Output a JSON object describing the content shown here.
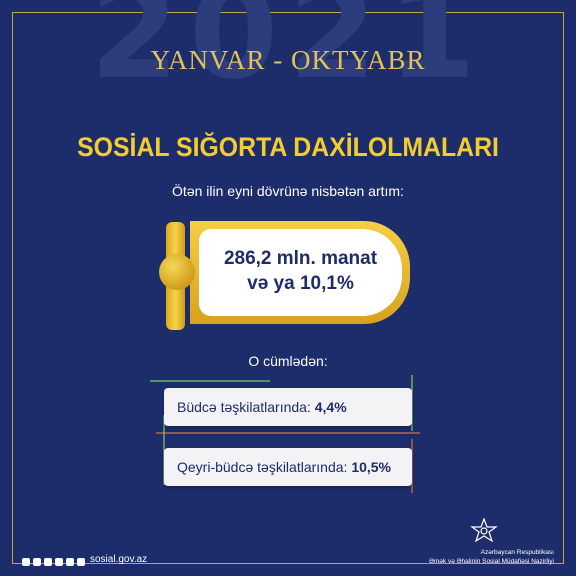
{
  "year": "2021",
  "period": "YANVAR - OKTYABR",
  "title": "SOSİAL SIĞORTA DAXİLOLMALARI",
  "subtitle": "Ötən ilin eyni dövrünə nisbətən artım:",
  "main": {
    "line1": "286,2 mln. manat",
    "line2_prefix": "və ya ",
    "line2_value": "10,1%"
  },
  "note": "O cümlədən:",
  "items": [
    {
      "label": "Büdcə təşkilatlarında: ",
      "value": "4,4%"
    },
    {
      "label": "Qeyri-büdcə təşkilatlarında: ",
      "value": "10,5%"
    }
  ],
  "footer": {
    "site": "sosial.gov.az",
    "org_line1": "Azərbaycan Respublikası",
    "org_line2": "Əmək və Əhalinin Sosial Müdafiəsi Nazirliyi",
    "social_icons": [
      "facebook-icon",
      "instagram-icon",
      "telegram-icon",
      "twitter-icon",
      "youtube-icon",
      "linkedin-icon"
    ]
  },
  "colors": {
    "background": "#1d2c6b",
    "gold": "#f3cd2e",
    "navy_text": "#1d2c6b"
  }
}
